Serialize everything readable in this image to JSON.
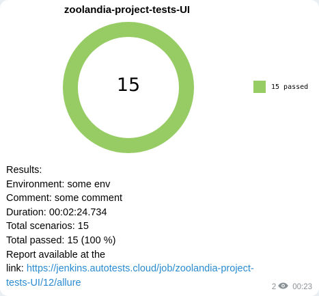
{
  "chart": {
    "title": "zoolandia-project-tests-UI",
    "center_value": "15",
    "legend_label": "15 passed",
    "color": "#97cc64"
  },
  "chart_data": {
    "type": "pie",
    "title": "zoolandia-project-tests-UI",
    "categories": [
      "15 passed"
    ],
    "values": [
      15
    ],
    "legend": "right"
  },
  "message": {
    "results_label": "Results:",
    "environment_key": "Environment:",
    "environment_value": "some env",
    "comment_key": "Comment:",
    "comment_value": "some comment",
    "duration_key": "Duration:",
    "duration_value": "00:02:24.734",
    "total_scenarios_key": "Total scenarios:",
    "total_scenarios_value": "15",
    "total_passed_key": "Total passed:",
    "total_passed_value": "15 (100 %)",
    "report_line1": "Report available at the",
    "report_line2_prefix": "link:",
    "link_part1": "https://jenkins.autotests.cloud/job/zoolandia-project-",
    "link_part2": "tests-UI/12/allure"
  },
  "meta": {
    "views": "2",
    "time": "00:23",
    "views_icon": "eye-icon",
    "text_color": "#8a9196"
  }
}
